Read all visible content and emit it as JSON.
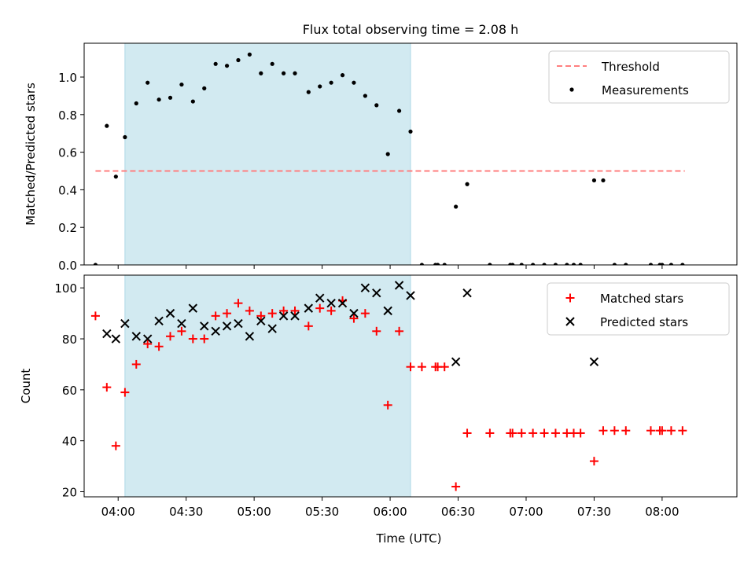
{
  "figure": {
    "title": "Flux total observing time = 2.08 h"
  },
  "colors": {
    "shade": "#add8e6",
    "threshold": "#ff7f7f",
    "measurements": "#000000",
    "matched": "#ff0000",
    "predicted": "#000000"
  },
  "chart_data": [
    {
      "id": "top",
      "type": "scatter",
      "title": "Flux total observing time = 2.08 h",
      "ylabel": "Matched/Predicted stars",
      "xlabel": "",
      "ylim": [
        0,
        1.18
      ],
      "xlim": [
        "03:45",
        "08:33"
      ],
      "yticks": [
        "0.0",
        "0.2",
        "0.4",
        "0.6",
        "0.8",
        "1.0"
      ],
      "xticks": [
        "04:00",
        "04:30",
        "05:00",
        "05:30",
        "06:00",
        "06:30",
        "07:00",
        "07:30",
        "08:00"
      ],
      "shaded_span": [
        "04:03",
        "06:09"
      ],
      "legend": "top-right",
      "threshold": {
        "name": "Threshold",
        "value": 0.5,
        "x": [
          "03:50",
          "08:10"
        ]
      },
      "series": [
        {
          "name": "Measurements",
          "x": [
            "03:50",
            "03:55",
            "03:59",
            "04:03",
            "04:08",
            "04:13",
            "04:18",
            "04:23",
            "04:28",
            "04:33",
            "04:38",
            "04:43",
            "04:48",
            "04:53",
            "04:58",
            "05:03",
            "05:08",
            "05:13",
            "05:18",
            "05:24",
            "05:29",
            "05:34",
            "05:39",
            "05:44",
            "05:49",
            "05:54",
            "05:59",
            "06:04",
            "06:09",
            "06:14",
            "06:20",
            "06:21",
            "06:24",
            "06:29",
            "06:34",
            "06:44",
            "06:53",
            "06:54",
            "06:58",
            "07:03",
            "07:08",
            "07:13",
            "07:18",
            "07:21",
            "07:24",
            "07:30",
            "07:34",
            "07:39",
            "07:44",
            "07:55",
            "07:59",
            "08:00",
            "08:04",
            "08:09"
          ],
          "y": [
            0.0,
            0.74,
            0.47,
            0.68,
            0.86,
            0.97,
            0.88,
            0.89,
            0.96,
            0.87,
            0.94,
            1.07,
            1.06,
            1.09,
            1.12,
            1.02,
            1.07,
            1.02,
            1.02,
            0.92,
            0.95,
            0.97,
            1.01,
            0.97,
            0.9,
            0.85,
            0.59,
            0.82,
            0.71,
            0.0,
            0.0,
            0.0,
            0.0,
            0.31,
            0.43,
            0.0,
            0.0,
            0.0,
            0.0,
            0.0,
            0.0,
            0.0,
            0.0,
            0.0,
            0.0,
            0.45,
            0.45,
            0.0,
            0.0,
            0.0,
            0.0,
            0.0,
            0.0,
            0.0
          ]
        }
      ]
    },
    {
      "id": "bottom",
      "type": "scatter",
      "title": "",
      "ylabel": "Count",
      "xlabel": "Time (UTC)",
      "ylim": [
        18,
        105
      ],
      "xlim": [
        "03:45",
        "08:33"
      ],
      "yticks": [
        "20",
        "40",
        "60",
        "80",
        "100"
      ],
      "xticks": [
        "04:00",
        "04:30",
        "05:00",
        "05:30",
        "06:00",
        "06:30",
        "07:00",
        "07:30",
        "08:00"
      ],
      "shaded_span": [
        "04:03",
        "06:09"
      ],
      "legend": "top-right",
      "series": [
        {
          "name": "Matched stars",
          "marker": "plus",
          "x": [
            "03:50",
            "03:55",
            "03:59",
            "04:03",
            "04:08",
            "04:13",
            "04:18",
            "04:23",
            "04:28",
            "04:33",
            "04:38",
            "04:43",
            "04:48",
            "04:53",
            "04:58",
            "05:03",
            "05:08",
            "05:13",
            "05:18",
            "05:24",
            "05:29",
            "05:34",
            "05:39",
            "05:44",
            "05:49",
            "05:54",
            "05:59",
            "06:04",
            "06:09",
            "06:14",
            "06:20",
            "06:21",
            "06:24",
            "06:29",
            "06:34",
            "06:44",
            "06:53",
            "06:54",
            "06:58",
            "07:03",
            "07:08",
            "07:13",
            "07:18",
            "07:21",
            "07:24",
            "07:30",
            "07:34",
            "07:39",
            "07:44",
            "07:55",
            "07:59",
            "08:00",
            "08:04",
            "08:09"
          ],
          "y": [
            89,
            61,
            38,
            59,
            70,
            78,
            77,
            81,
            83,
            80,
            80,
            89,
            90,
            94,
            91,
            89,
            90,
            91,
            91,
            85,
            92,
            91,
            95,
            88,
            90,
            83,
            54,
            83,
            69,
            69,
            69,
            69,
            69,
            22,
            43,
            43,
            43,
            43,
            43,
            43,
            43,
            43,
            43,
            43,
            43,
            32,
            44,
            44,
            44,
            44,
            44,
            44,
            44,
            44
          ]
        },
        {
          "name": "Predicted stars",
          "marker": "x",
          "x": [
            "03:55",
            "03:59",
            "04:03",
            "04:08",
            "04:13",
            "04:18",
            "04:23",
            "04:28",
            "04:33",
            "04:38",
            "04:43",
            "04:48",
            "04:53",
            "04:58",
            "05:03",
            "05:08",
            "05:13",
            "05:18",
            "05:24",
            "05:29",
            "05:34",
            "05:39",
            "05:44",
            "05:49",
            "05:54",
            "05:59",
            "06:04",
            "06:09",
            "06:29",
            "06:34",
            "07:30"
          ],
          "y": [
            82,
            80,
            86,
            81,
            80,
            87,
            90,
            86,
            92,
            85,
            83,
            85,
            86,
            81,
            87,
            84,
            89,
            89,
            92,
            96,
            94,
            94,
            90,
            100,
            98,
            91,
            101,
            97,
            71,
            98,
            71
          ]
        }
      ]
    }
  ]
}
